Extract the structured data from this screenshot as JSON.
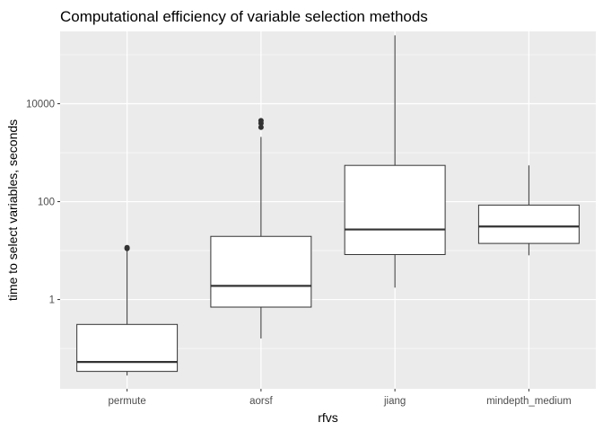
{
  "chart_data": {
    "type": "boxplot",
    "title": "Computational efficiency of variable selection methods",
    "xlabel": "rfvs",
    "ylabel": "time to select variables, seconds",
    "y_scale": "log10",
    "ylim": [
      0.015,
      300000
    ],
    "y_ticks": [
      1,
      100,
      10000
    ],
    "y_tick_labels": [
      "1",
      "100",
      "10000"
    ],
    "categories": [
      "permute",
      "aorsf",
      "jiang",
      "mindepth_medium"
    ],
    "boxes": [
      {
        "category": "permute",
        "whisker_low": 0.028,
        "q1": 0.034,
        "median": 0.053,
        "q3": 0.31,
        "whisker_high": 10.5,
        "outliers": [
          11,
          11.5
        ]
      },
      {
        "category": "aorsf",
        "whisker_low": 0.16,
        "q1": 0.7,
        "median": 1.9,
        "q3": 19.5,
        "whisker_high": 2100,
        "outliers": [
          3300,
          4000,
          4500
        ]
      },
      {
        "category": "jiang",
        "whisker_low": 1.75,
        "q1": 8.3,
        "median": 27,
        "q3": 550,
        "whisker_high": 250000,
        "outliers": []
      },
      {
        "category": "mindepth_medium",
        "whisker_low": 8.0,
        "q1": 14,
        "median": 31,
        "q3": 85,
        "whisker_high": 550,
        "outliers": []
      }
    ],
    "grid": true,
    "legend": "none",
    "colors": {
      "panel_background": "#ebebeb",
      "grid_major": "#ffffff",
      "box_fill": "#ffffff",
      "box_stroke": "#333333",
      "outlier": "#333333",
      "tick_text": "#4d4d4d"
    }
  }
}
